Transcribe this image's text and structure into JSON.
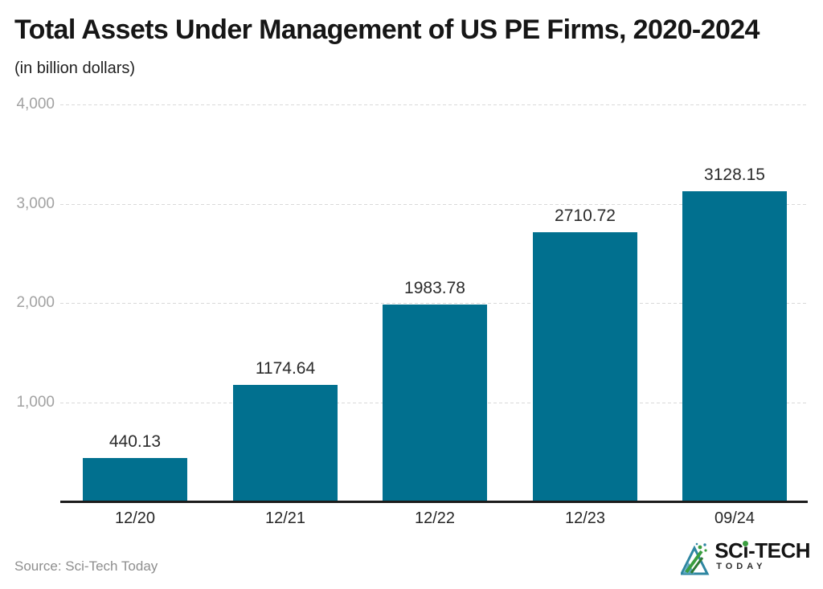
{
  "header": {
    "title": "Total Assets Under Management of US PE Firms, 2020-2024",
    "subtitle": "(in billion dollars)"
  },
  "chart_data": {
    "type": "bar",
    "title": "Total Assets Under Management of US PE Firms, 2020-2024",
    "subtitle": "(in billion dollars)",
    "categories": [
      "12/20",
      "12/21",
      "12/22",
      "12/23",
      "09/24"
    ],
    "values": [
      440.13,
      1174.64,
      1983.78,
      2710.72,
      3128.15
    ],
    "value_labels": [
      "440.13",
      "1174.64",
      "1983.78",
      "2710.72",
      "3128.15"
    ],
    "xlabel": "",
    "ylabel": "",
    "ylim": [
      0,
      4000
    ],
    "yticks": [
      1000,
      2000,
      3000,
      4000
    ],
    "ytick_labels": [
      "1,000",
      "2,000",
      "3,000",
      "4,000"
    ],
    "grid": true,
    "legend": "none",
    "bar_color": "#01708F"
  },
  "footer": {
    "source": "Source: Sci-Tech Today",
    "logo": {
      "word_pre": "SC",
      "word_i": "i",
      "word_post": "-TECH",
      "subline": "TODAY"
    }
  },
  "colors": {
    "bar": "#01708F",
    "axis": "#1c1c1c",
    "gridline": "#d9d9d9",
    "ytick_text": "#a2a2a2",
    "logo_green": "#3a9e3f",
    "logo_teal": "#2e86a1"
  }
}
